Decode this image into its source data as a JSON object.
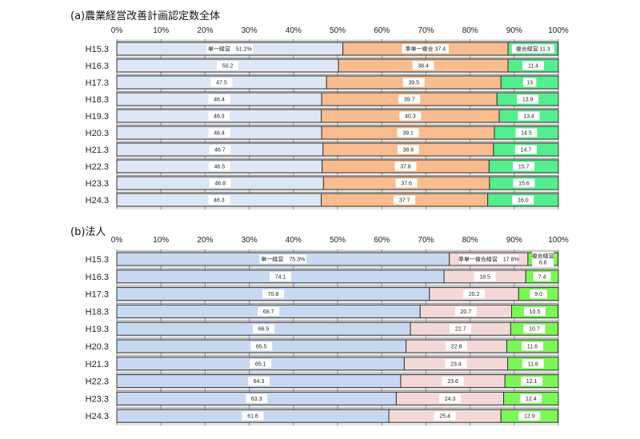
{
  "chart_data": [
    {
      "type": "bar",
      "orientation": "horizontal",
      "stacked": "percent",
      "title": "(a)農業経営改善計画認定数全体",
      "categories": [
        "H15.3",
        "H16.3",
        "H17.3",
        "H18.3",
        "H19.3",
        "H20.3",
        "H21.3",
        "H22.3",
        "H23.3",
        "H24.3"
      ],
      "xlim": [
        0,
        100
      ],
      "xticks": [
        "0%",
        "10%",
        "20%",
        "30%",
        "40%",
        "50%",
        "60%",
        "70%",
        "80%",
        "90%",
        "100%"
      ],
      "grid": true,
      "series": [
        {
          "name": "単一経営",
          "color": "#dde6f4",
          "values": [
            51.2,
            50.2,
            47.5,
            46.4,
            46.3,
            46.4,
            46.7,
            46.5,
            46.8,
            46.3
          ],
          "labels": [
            "単一経営　51.2%",
            "50.2",
            "47.5",
            "46.4",
            "46.3",
            "46.4",
            "46.7",
            "46.5",
            "46.8",
            "46.3"
          ]
        },
        {
          "name": "準単一複合",
          "color": "#f9bc8e",
          "values": [
            37.4,
            38.4,
            39.5,
            39.7,
            40.3,
            39.1,
            38.6,
            37.8,
            37.6,
            37.7
          ],
          "labels": [
            "準単一複合 37.4",
            "38.4",
            "39.5",
            "39.7",
            "40.3",
            "39.1",
            "38.6",
            "37.8",
            "37.6",
            "37.7"
          ]
        },
        {
          "name": "複合経営",
          "color": "#55ee8e",
          "values": [
            11.3,
            11.4,
            13,
            13.9,
            13.4,
            14.5,
            14.7,
            15.7,
            15.6,
            16.0
          ],
          "labels": [
            "複合経営 11.3",
            "11.4",
            "13",
            "13.9",
            "13.4",
            "14.5",
            "14.7",
            "15.7",
            "15.6",
            "16.0"
          ]
        }
      ]
    },
    {
      "type": "bar",
      "orientation": "horizontal",
      "stacked": "percent",
      "title": "(b)法人",
      "categories": [
        "H15.3",
        "H16.3",
        "H17.3",
        "H18.3",
        "H19.3",
        "H20.3",
        "H21.3",
        "H22.3",
        "H23.3",
        "H24.3"
      ],
      "xlim": [
        0,
        100
      ],
      "xticks": [
        "0%",
        "10%",
        "20%",
        "30%",
        "40%",
        "50%",
        "60%",
        "70%",
        "80%",
        "90%",
        "100%"
      ],
      "grid": true,
      "series": [
        {
          "name": "単一経営",
          "color": "#c7d9f1",
          "values": [
            75.3,
            74.1,
            70.8,
            68.7,
            66.5,
            65.5,
            65.1,
            64.3,
            63.3,
            61.6
          ],
          "labels": [
            "単一経営　75.3%",
            "74.1",
            "70.8",
            "68.7",
            "66.5",
            "65.5",
            "65.1",
            "64.3",
            "63.3",
            "61.6"
          ]
        },
        {
          "name": "準単一複合経営",
          "color": "#f4d8d8",
          "values": [
            17.8,
            18.5,
            20.2,
            20.7,
            22.7,
            22.8,
            23.4,
            23.6,
            24.3,
            25.4
          ],
          "labels": [
            "準単一複合経営　17.8%",
            "18.5",
            "20.2",
            "20.7",
            "22.7",
            "22.8",
            "23.4",
            "23.6",
            "24.3",
            "25.4"
          ]
        },
        {
          "name": "複合経営",
          "color": "#7cf556",
          "values": [
            6.8,
            7.4,
            9.0,
            10.5,
            10.7,
            11.6,
            11.6,
            12.1,
            12.4,
            12.9
          ],
          "labels": [
            "複合経営\n6.8",
            "7.4",
            "9.0",
            "10.5",
            "10.7",
            "11.6",
            "11.6",
            "12.1",
            "12.4",
            "12.9"
          ]
        }
      ]
    }
  ]
}
